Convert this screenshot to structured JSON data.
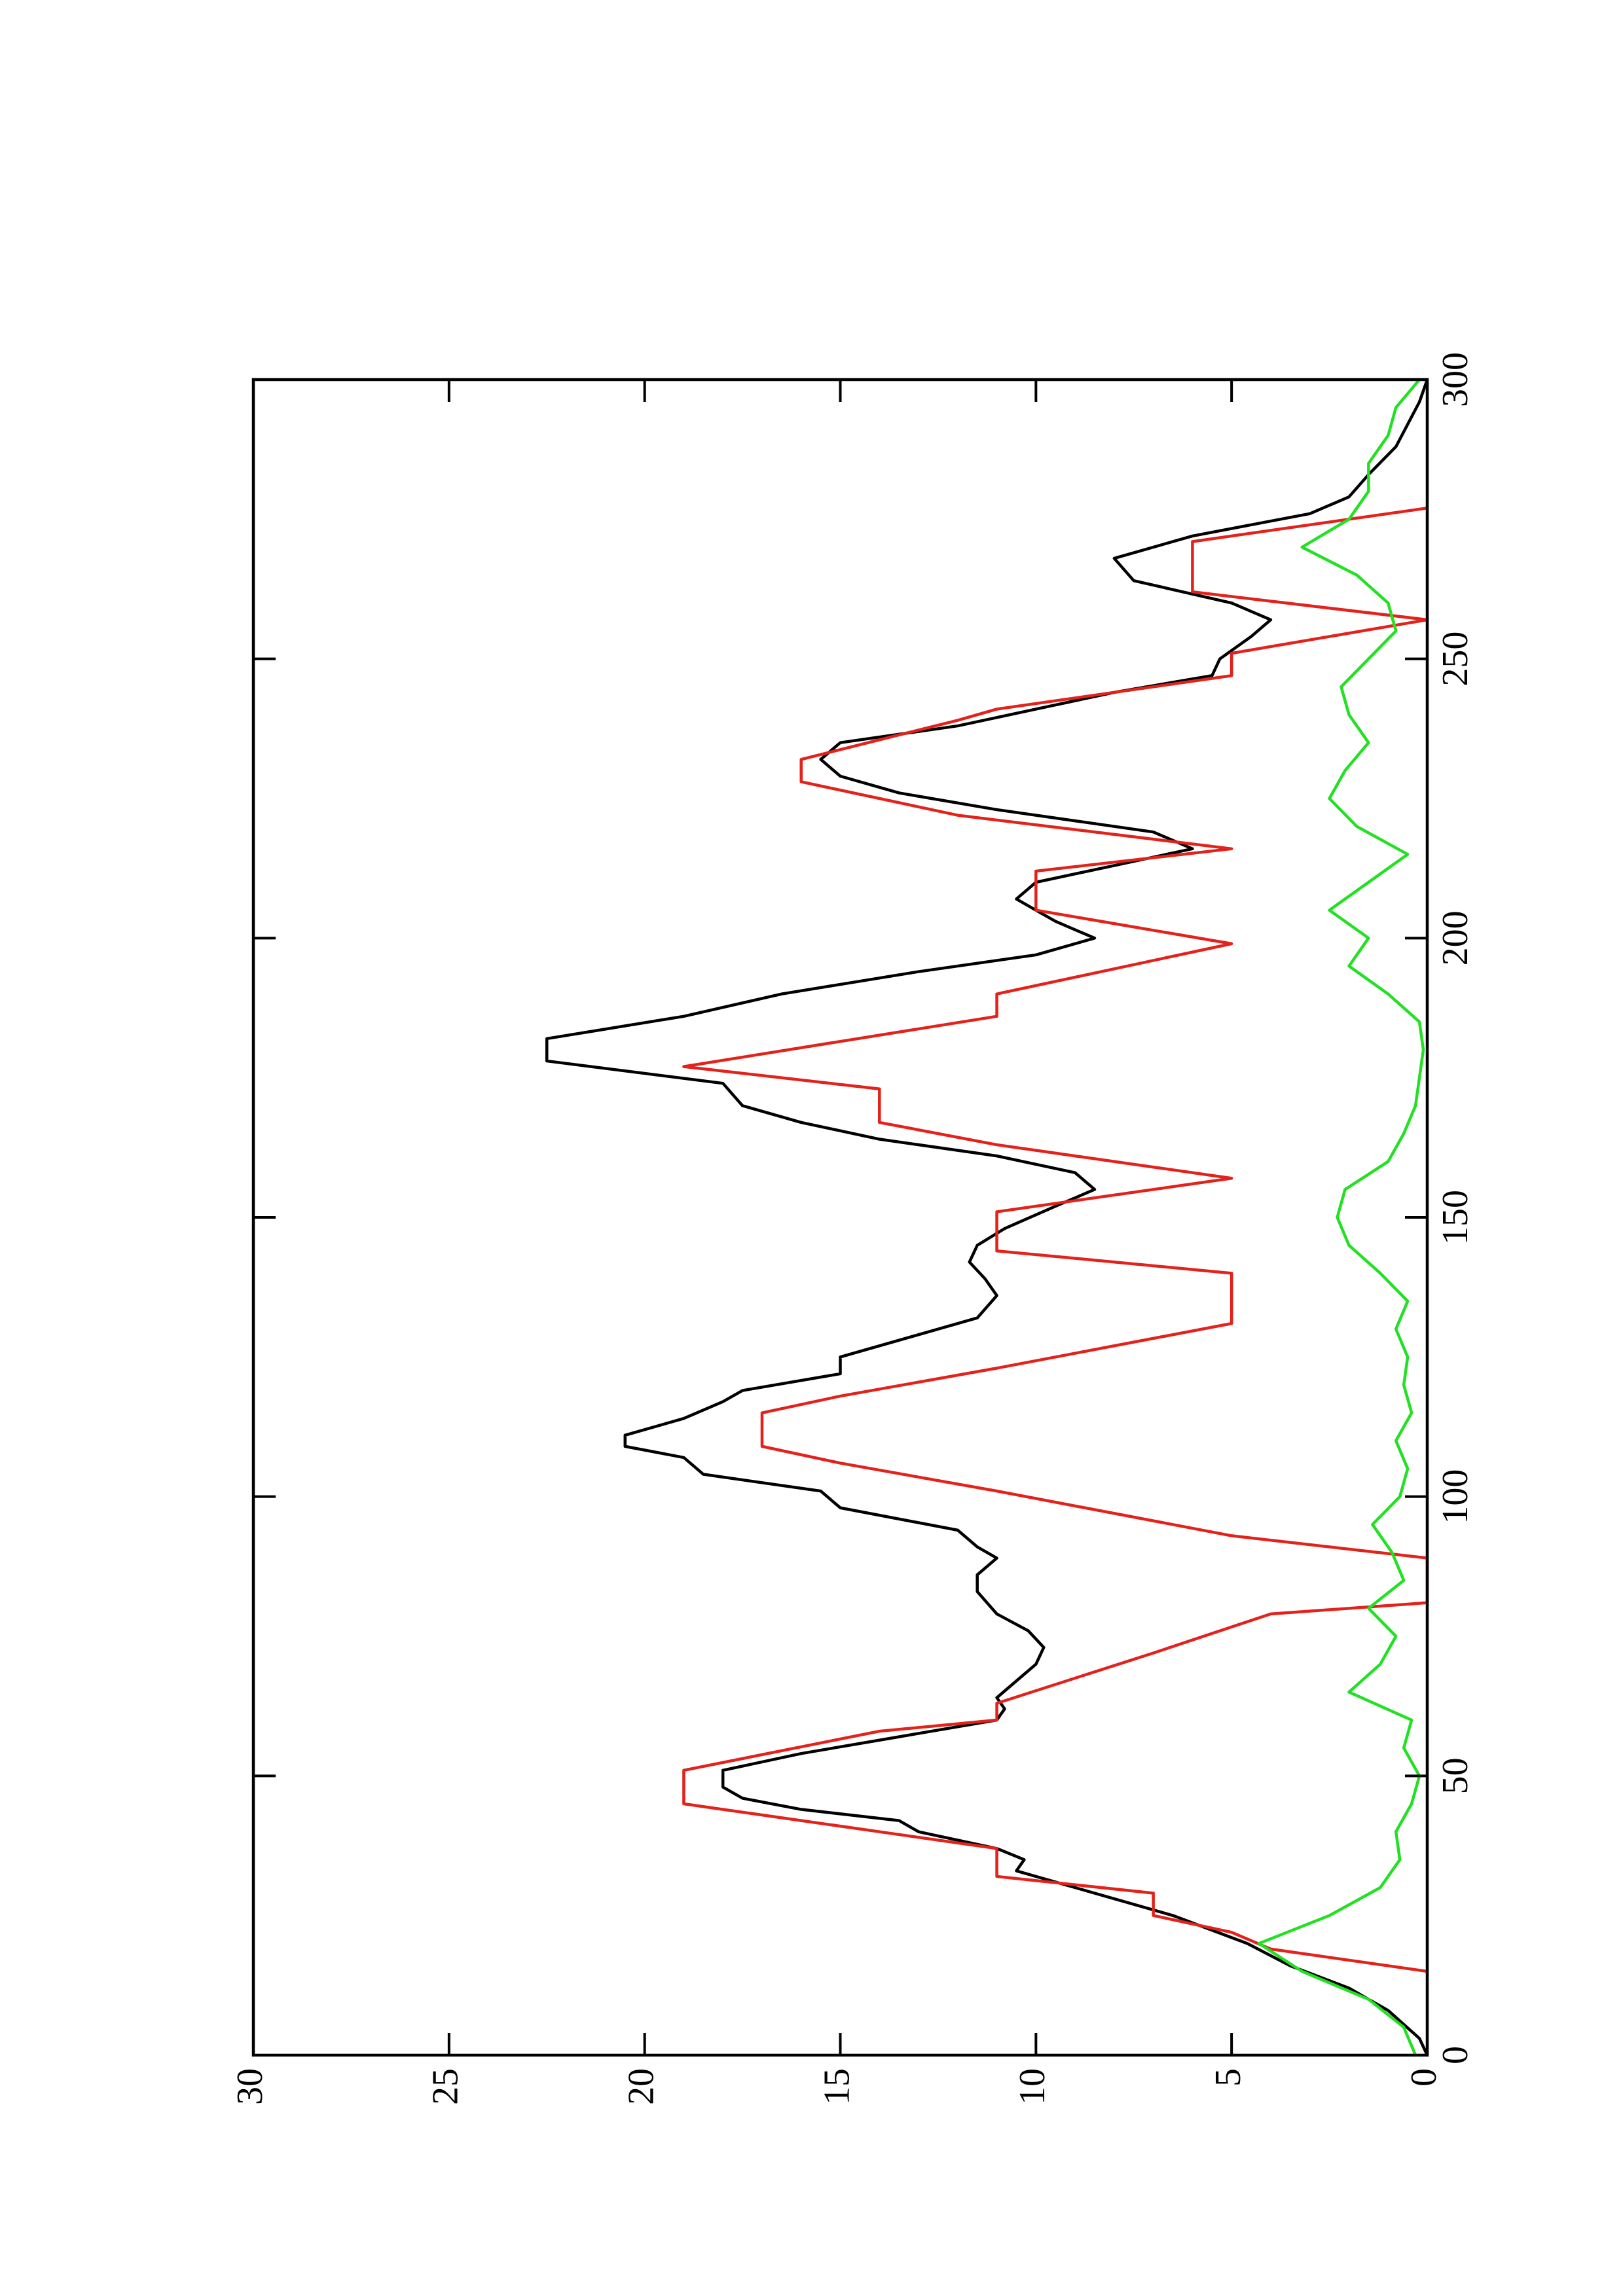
{
  "chart_data": {
    "type": "line",
    "xlim": [
      0,
      300
    ],
    "xticks": [
      0,
      50,
      100,
      150,
      200,
      250,
      300
    ],
    "ylim": [
      0,
      30
    ],
    "yticks": [
      0,
      5,
      10,
      15,
      20,
      25,
      30
    ],
    "series": [
      {
        "color": "#000000",
        "x": [
          0,
          3,
          8,
          12,
          16,
          20,
          25,
          30,
          33,
          35,
          37,
          40,
          42,
          44,
          46,
          48,
          51,
          54,
          57,
          60,
          62,
          64,
          67,
          70,
          73,
          76,
          79,
          83,
          86,
          89,
          91,
          94,
          98,
          101,
          104,
          107,
          109,
          111,
          114,
          117,
          119,
          122,
          125,
          129,
          132,
          136,
          139,
          142,
          145,
          148,
          152,
          155,
          158,
          161,
          164,
          167,
          170,
          174,
          178,
          182,
          186,
          190,
          194,
          197,
          200,
          203,
          207,
          210,
          213,
          216,
          219,
          223,
          226,
          229,
          232,
          235,
          238,
          241,
          244,
          247,
          250,
          254,
          257,
          260,
          264,
          268,
          272,
          276,
          279,
          283,
          288,
          292,
          296,
          300
        ],
        "values": [
          0,
          0.2,
          1,
          2,
          3.5,
          4.6,
          6.5,
          9,
          10.5,
          10.3,
          11,
          13,
          13.5,
          16,
          17.5,
          18,
          18,
          16,
          13.5,
          11,
          10.8,
          11,
          10.5,
          10,
          9.8,
          10.2,
          11,
          11.5,
          11.5,
          11,
          11.5,
          12,
          15,
          15.5,
          18.5,
          19,
          20.5,
          20.5,
          19,
          18,
          17.5,
          15,
          15,
          13,
          11.5,
          11,
          11.3,
          11.7,
          11.5,
          10.8,
          9.5,
          8.5,
          9,
          11,
          14,
          16,
          17.5,
          18,
          22.5,
          22.5,
          19,
          16.5,
          13,
          10,
          8.5,
          9.5,
          10.5,
          10,
          8,
          6,
          7,
          11,
          13.5,
          15,
          15.5,
          15,
          12,
          10,
          8,
          5.5,
          5.3,
          4.5,
          4,
          5,
          7.5,
          8,
          6,
          3,
          2,
          1.5,
          0.8,
          0.5,
          0.2,
          0
        ]
      },
      {
        "color": "#e3221c",
        "x": [
          15,
          19,
          22,
          25,
          29,
          32,
          37,
          40,
          45,
          51,
          58,
          60,
          63,
          72,
          79,
          81,
          89,
          93,
          101,
          106,
          109,
          115,
          118,
          123,
          131,
          140,
          144,
          151,
          157,
          163,
          167,
          173,
          177,
          186,
          190,
          199,
          205,
          212,
          216,
          222,
          228,
          232,
          239,
          241,
          247,
          251,
          257,
          262,
          271,
          277
        ],
        "values": [
          0,
          4,
          5,
          7,
          7,
          11,
          11,
          14,
          19,
          19,
          14,
          11,
          11,
          7,
          4,
          0,
          0,
          5,
          11,
          15,
          17,
          17,
          15,
          11,
          5,
          5,
          11,
          11,
          5,
          11,
          14,
          14,
          19,
          11,
          11,
          5,
          10,
          10,
          5,
          12,
          16,
          16,
          12,
          11,
          5,
          5,
          0,
          6,
          6,
          0
        ]
      },
      {
        "color": "#22e022",
        "x": [
          0,
          5,
          10,
          15,
          20,
          25,
          30,
          35,
          40,
          45,
          50,
          55,
          60,
          65,
          70,
          75,
          80,
          85,
          90,
          95,
          100,
          105,
          110,
          115,
          120,
          125,
          130,
          135,
          140,
          145,
          150,
          155,
          160,
          165,
          170,
          175,
          180,
          185,
          190,
          195,
          200,
          205,
          210,
          215,
          220,
          225,
          230,
          235,
          240,
          245,
          250,
          255,
          260,
          265,
          270,
          275,
          280,
          285,
          290,
          295,
          300
        ],
        "values": [
          0.3,
          0.6,
          1.5,
          3.2,
          4.3,
          2.5,
          1.2,
          0.7,
          0.8,
          0.4,
          0.2,
          0.6,
          0.4,
          2.0,
          1.2,
          0.8,
          1.5,
          0.6,
          0.9,
          1.4,
          0.7,
          0.5,
          0.8,
          0.4,
          0.6,
          0.5,
          0.8,
          0.5,
          1.2,
          2.0,
          2.3,
          2.1,
          1.0,
          0.6,
          0.3,
          0.2,
          0.1,
          0.2,
          1.0,
          2.0,
          1.5,
          2.5,
          1.5,
          0.5,
          1.8,
          2.5,
          2.1,
          1.5,
          2.0,
          2.2,
          1.5,
          0.8,
          1.0,
          1.8,
          3.2,
          2.0,
          1.5,
          1.5,
          1.0,
          0.8,
          0.2
        ]
      }
    ]
  }
}
